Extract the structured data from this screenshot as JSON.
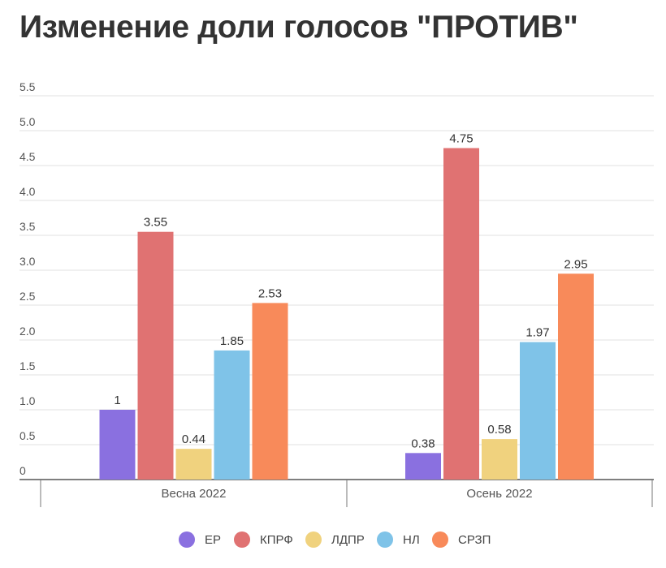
{
  "chart_data": {
    "type": "bar",
    "title": "Изменение доли голосов \"ПРОТИВ\"",
    "xlabel": "",
    "ylabel": "",
    "ylim": [
      0,
      5.5
    ],
    "yticks": [
      "0",
      "0.5",
      "1.0",
      "1.5",
      "2.0",
      "2.5",
      "3.0",
      "3.5",
      "4.0",
      "4.5",
      "5.0",
      "5.5"
    ],
    "grid": true,
    "legend_position": "bottom",
    "categories": [
      "Весна 2022",
      "Осень 2022"
    ],
    "series": [
      {
        "name": "ЕР",
        "color": "#8a70e0",
        "values": [
          1,
          0.38
        ],
        "labels": [
          "1",
          "0.38"
        ]
      },
      {
        "name": "КПРФ",
        "color": "#e07272",
        "values": [
          3.55,
          4.75
        ],
        "labels": [
          "3.55",
          "4.75"
        ]
      },
      {
        "name": "ЛДПР",
        "color": "#f0d27e",
        "values": [
          0.44,
          0.58
        ],
        "labels": [
          "0.44",
          "0.58"
        ]
      },
      {
        "name": "НЛ",
        "color": "#7fc3e8",
        "values": [
          1.85,
          1.97
        ],
        "labels": [
          "1.85",
          "1.97"
        ]
      },
      {
        "name": "СРЗП",
        "color": "#f88a5a",
        "values": [
          2.53,
          2.95
        ],
        "labels": [
          "2.53",
          "2.95"
        ]
      }
    ]
  }
}
